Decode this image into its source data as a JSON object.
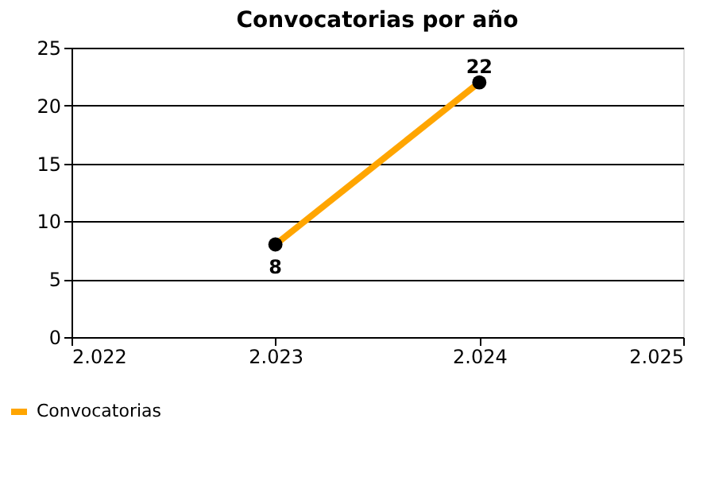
{
  "chart_data": {
    "type": "line",
    "title": "Convocatorias por año",
    "x": [
      2023,
      2024
    ],
    "series": [
      {
        "name": "Convocatorias",
        "color": "#ffa500",
        "colors": [
          "#000000",
          "#000000"
        ],
        "values": [
          8,
          22
        ]
      }
    ],
    "xlim": [
      2022,
      2025
    ],
    "xticks": [
      {
        "value": 2022,
        "label": "2.022"
      },
      {
        "value": 2023,
        "label": "2.023"
      },
      {
        "value": 2024,
        "label": "2.024"
      },
      {
        "value": 2025,
        "label": "2.025"
      }
    ],
    "ylim": [
      0,
      25
    ],
    "yticks": [
      0,
      5,
      10,
      15,
      20,
      25
    ],
    "grid": "y",
    "legend": "bottom left",
    "marker": "circle",
    "line_style": "solid",
    "data_labels": true
  }
}
